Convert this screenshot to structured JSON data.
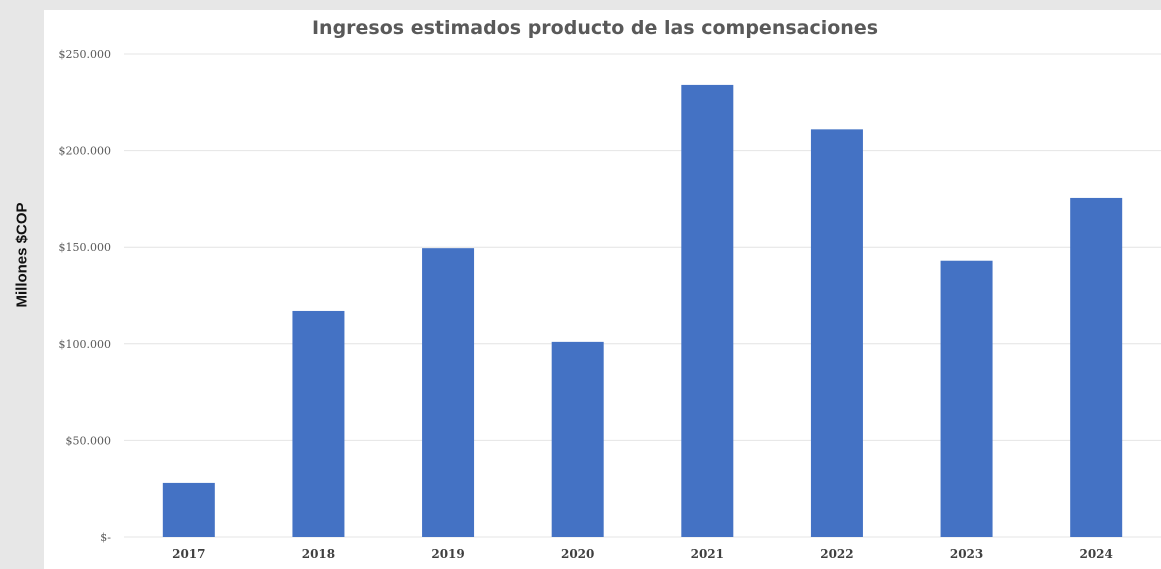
{
  "chart_data": {
    "type": "bar",
    "title": "Ingresos estimados producto de las compensaciones",
    "ylabel": "Millones $COP",
    "xlabel": "",
    "categories": [
      "2017",
      "2018",
      "2019",
      "2020",
      "2021",
      "2022",
      "2023",
      "2024"
    ],
    "values": [
      28000,
      117000,
      149500,
      101000,
      234000,
      211000,
      143000,
      175500
    ],
    "ylim": [
      0,
      250000
    ],
    "yticks": [
      0,
      50000,
      100000,
      150000,
      200000,
      250000
    ],
    "ytick_labels": [
      "$-",
      "$50.000",
      "$100.000",
      "$150.000",
      "$200.000",
      "$250.000"
    ],
    "grid": true,
    "legend": "none",
    "colors": {
      "bar": "#4472c4",
      "grid": "#e4e4e4",
      "background": "#ffffff",
      "frame": "#e7e7e7"
    }
  }
}
